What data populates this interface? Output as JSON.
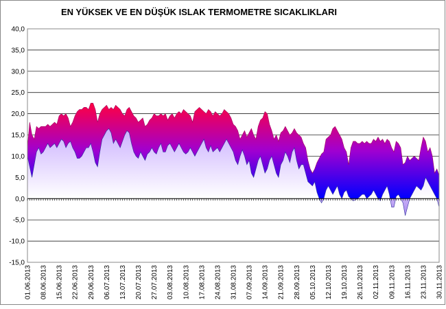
{
  "chart_data": {
    "type": "area-range",
    "title": "EN YÜKSEK VE EN DÜŞÜK ISLAK TERMOMETRE SICAKLIKLARI",
    "categories": [
      "01.06.2013",
      null,
      null,
      null,
      null,
      null,
      null,
      "08.06.2013",
      null,
      null,
      null,
      null,
      null,
      null,
      "15.06.2013",
      null,
      null,
      null,
      null,
      null,
      null,
      "22.06.2013",
      null,
      null,
      null,
      null,
      null,
      null,
      "29.06.2013",
      null,
      null,
      null,
      null,
      null,
      null,
      "06.07.2013",
      null,
      null,
      null,
      null,
      null,
      null,
      "13.07.2013",
      null,
      null,
      null,
      null,
      null,
      null,
      "20.07.2013",
      null,
      null,
      null,
      null,
      null,
      null,
      "27.07.2013",
      null,
      null,
      null,
      null,
      null,
      null,
      "03.08.2013",
      null,
      null,
      null,
      null,
      null,
      null,
      "10.08.2013",
      null,
      null,
      null,
      null,
      null,
      null,
      "17.08.2013",
      null,
      null,
      null,
      null,
      null,
      null,
      "24.08.2013",
      null,
      null,
      null,
      null,
      null,
      null,
      "31.08.2013",
      null,
      null,
      null,
      null,
      null,
      null,
      "07.09.2013",
      null,
      null,
      null,
      null,
      null,
      null,
      "14.09.2013",
      null,
      null,
      null,
      null,
      null,
      null,
      "21.09.2013",
      null,
      null,
      null,
      null,
      null,
      null,
      "28.09.2013",
      null,
      null,
      null,
      null,
      null,
      null,
      "05.10.2013",
      null,
      null,
      null,
      null,
      null,
      null,
      "12.10.2013",
      null,
      null,
      null,
      null,
      null,
      null,
      "19.10.2013",
      null,
      null,
      null,
      null,
      null,
      null,
      "26.10.2013",
      null,
      null,
      null,
      null,
      null,
      null,
      "02.11.2013",
      null,
      null,
      null,
      null,
      null,
      null,
      "09.11.2013",
      null,
      null,
      null,
      null,
      null,
      null,
      "16.11.2013",
      null,
      null,
      null,
      null,
      null,
      null,
      "23.11.2013",
      null,
      null,
      null,
      null,
      null,
      null,
      "30.11.2013"
    ],
    "series": [
      {
        "color": "#ff0040",
        "values": [
          12,
          18,
          15,
          14,
          17,
          16.5,
          17,
          17,
          17,
          17.5,
          17,
          17.5,
          18,
          17.5,
          19.5,
          20,
          19.5,
          20,
          19,
          17,
          18,
          19.5,
          20.5,
          21,
          21,
          21.5,
          21.5,
          21,
          22.5,
          22.5,
          21,
          18,
          20,
          21,
          21.5,
          22,
          21,
          21.5,
          21,
          22,
          21.5,
          21,
          20,
          19.5,
          21,
          21.5,
          20.5,
          19.5,
          19,
          18,
          18.5,
          19,
          17,
          17.5,
          18.5,
          19,
          20,
          19.5,
          19.5,
          20,
          19.5,
          20,
          18.5,
          19.5,
          20,
          19,
          20,
          20.5,
          20,
          21,
          20.5,
          20,
          19.5,
          18,
          20.5,
          21,
          21.5,
          21,
          20.5,
          20,
          21,
          20.5,
          19.5,
          20.5,
          20,
          19.5,
          20,
          21,
          20.5,
          20,
          19,
          17.5,
          17,
          16,
          14,
          15,
          16,
          14.5,
          15.5,
          16.5,
          15,
          14,
          17,
          18.5,
          19,
          20.5,
          20,
          17.5,
          16,
          14,
          15,
          13.5,
          15.5,
          16,
          17,
          16,
          15,
          15.5,
          16.5,
          15.5,
          15,
          14.5,
          13,
          12,
          9,
          7,
          6,
          7,
          8.5,
          9.5,
          10.5,
          11,
          14,
          14.5,
          15,
          16.5,
          17,
          16,
          15,
          14,
          12,
          11,
          8,
          12,
          13.5,
          13.5,
          13,
          13,
          13.5,
          13,
          13.5,
          13,
          13,
          14,
          13.5,
          14.5,
          13.5,
          14,
          13,
          14,
          13.5,
          12,
          11,
          13.5,
          13,
          12,
          8,
          8.5,
          10,
          9,
          9.5,
          10,
          9.5,
          9,
          12,
          14.5,
          13.5,
          11,
          12,
          10,
          6,
          7,
          5.5
        ]
      },
      {
        "color": "#c0a0ff",
        "values": [
          10,
          7.5,
          5,
          8,
          11,
          12,
          10.5,
          11,
          12,
          13,
          12,
          12.5,
          13,
          12,
          13,
          14,
          13.5,
          12,
          13,
          13.5,
          12,
          11,
          9.5,
          9.5,
          10,
          11,
          12,
          12,
          13,
          11,
          8.5,
          7.5,
          11,
          14,
          15,
          16,
          16.5,
          15.5,
          13,
          14,
          13,
          12,
          13.5,
          15,
          16,
          15.5,
          13,
          11,
          10,
          9.5,
          11,
          10,
          9,
          10.5,
          11,
          12,
          11,
          10.5,
          12,
          13,
          11,
          11,
          12.5,
          13,
          12,
          11,
          12,
          13,
          12,
          11,
          10.5,
          11,
          12,
          11,
          10,
          11,
          12,
          13,
          14,
          12,
          11,
          12.5,
          11,
          11.5,
          12,
          11,
          12,
          13,
          14,
          13,
          12,
          11,
          9,
          8,
          10,
          11.5,
          10,
          8,
          9,
          6,
          5,
          7,
          9,
          10,
          8,
          6,
          7,
          9,
          10,
          8,
          6,
          5,
          8,
          9,
          11,
          10,
          8.5,
          11,
          12,
          9,
          7,
          8,
          8,
          6,
          4,
          3.5,
          3,
          4,
          1.5,
          0,
          -1,
          0,
          2,
          3,
          2,
          1,
          2,
          3,
          1,
          0,
          1.5,
          2,
          0.5,
          0,
          -0.5,
          -0.3,
          0,
          0.5,
          1,
          1,
          0,
          0.5,
          1,
          2,
          1,
          0,
          -0.5,
          1,
          2,
          3,
          1,
          -2,
          -2,
          0.5,
          1,
          0,
          -1,
          -4,
          -2,
          0,
          1,
          2,
          3,
          2.5,
          2,
          3,
          5,
          4,
          3,
          2,
          1,
          0,
          -2
        ]
      }
    ],
    "ylim": [
      -15,
      40
    ],
    "yticks": [
      {
        "value": -15,
        "label": "-15,0"
      },
      {
        "value": -10,
        "label": "-10,0"
      },
      {
        "value": -5,
        "label": "-5,0"
      },
      {
        "value": 0,
        "label": "0,0"
      },
      {
        "value": 5,
        "label": "5,0"
      },
      {
        "value": 10,
        "label": "10,0"
      },
      {
        "value": 15,
        "label": "15,0"
      },
      {
        "value": 20,
        "label": "20,0"
      },
      {
        "value": 25,
        "label": "25,0"
      },
      {
        "value": 30,
        "label": "30,0"
      },
      {
        "value": 35,
        "label": "35,0"
      },
      {
        "value": 40,
        "label": "40,0"
      }
    ],
    "grid": true
  }
}
